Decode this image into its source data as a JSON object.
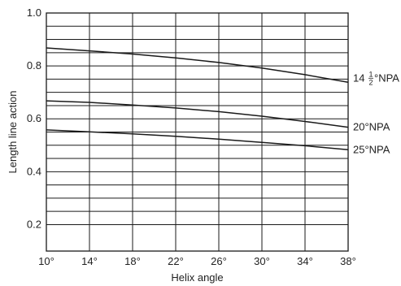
{
  "chart_data": {
    "type": "line",
    "title": "",
    "xlabel": "Helix angle",
    "ylabel": "Length line action",
    "xlim": [
      10,
      38
    ],
    "ylim": [
      0.1,
      1.0
    ],
    "x_tick_labels": [
      "10°",
      "14°",
      "18°",
      "22°",
      "26°",
      "30°",
      "34°",
      "38°"
    ],
    "x_ticks": [
      10,
      14,
      18,
      22,
      26,
      30,
      34,
      38
    ],
    "y_tick_labels": [
      "0.2",
      "0.4",
      "0.6",
      "0.8",
      "1.0"
    ],
    "y_ticks": [
      0.2,
      0.4,
      0.6,
      0.8,
      1.0
    ],
    "grid": true,
    "x": [
      10,
      14,
      18,
      22,
      26,
      30,
      34,
      38
    ],
    "series": [
      {
        "label_main": "14",
        "label_frac_num": "1",
        "label_frac_den": "2",
        "label_tail": "°NPA",
        "values": [
          0.868,
          0.857,
          0.845,
          0.83,
          0.813,
          0.792,
          0.767,
          0.738
        ]
      },
      {
        "label_main": "20°NPA",
        "values": [
          0.668,
          0.662,
          0.652,
          0.641,
          0.627,
          0.61,
          0.59,
          0.568
        ]
      },
      {
        "label_main": "25°NPA",
        "values": [
          0.558,
          0.551,
          0.543,
          0.534,
          0.523,
          0.511,
          0.498,
          0.483
        ]
      }
    ]
  }
}
